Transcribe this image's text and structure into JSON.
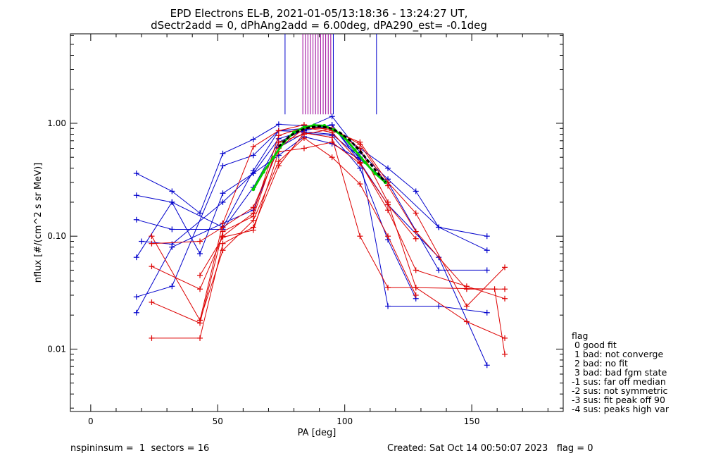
{
  "title": {
    "line1": "EPD Electrons EL-B, 2021-01-05/13:18:36 - 13:24:27 UT,",
    "line2": "dSectr2add = 0, dPhAng2add = 6.00deg, dPA290_est=  -0.1deg"
  },
  "footer": {
    "left": "nspininsum =  1  sectors = 16",
    "right": "Created: Sat Oct 14 00:50:07 2023   flag = 0"
  },
  "legend": {
    "title": "flag",
    "items": [
      " 0 good fit",
      " 1 bad: not converge",
      " 2 bad: no fit",
      " 3 bad: bad fgm state",
      "-1 sus: far off median",
      "-2 sus: not symmetric",
      "-3 sus: fit peak off 90",
      "-4 sus: peaks high var"
    ]
  },
  "colors": {
    "blue": "#0000cc",
    "red": "#dd0000",
    "green": "#00cc00",
    "purple": "#990099",
    "black": "#000000"
  },
  "chart_data": {
    "type": "line",
    "xlabel": "PA [deg]",
    "ylabel": "nflux [#/(cm^2 s sr MeV)]",
    "xlim": [
      -8,
      186
    ],
    "ylim": [
      0.0028,
      6.2
    ],
    "yscale": "log",
    "xticks": [
      "0",
      "50",
      "100",
      "150"
    ],
    "xtick_values": [
      0,
      50,
      100,
      150
    ],
    "yticks": [
      "0.01",
      "0.10",
      "1.00"
    ],
    "ytick_values": [
      0.01,
      0.1,
      1.0
    ],
    "vlines": {
      "blue": [
        76.5,
        95.5,
        112.5
      ],
      "purple": [
        83.5,
        84.5,
        85.5,
        86.5,
        87.5,
        88.5,
        89.5,
        90.5,
        91.5,
        92.5,
        93.5,
        94.5
      ]
    },
    "series": [
      {
        "color": "blue",
        "x": [
          18,
          32,
          43,
          52,
          64,
          74,
          84,
          95,
          106,
          117,
          128,
          137,
          156
        ],
        "y": [
          0.36,
          0.25,
          0.16,
          0.54,
          0.72,
          0.98,
          0.95,
          0.9,
          0.6,
          0.4,
          0.25,
          0.12,
          0.1
        ]
      },
      {
        "color": "blue",
        "x": [
          18,
          32,
          52,
          64,
          74,
          84,
          95,
          106,
          117,
          137,
          156
        ],
        "y": [
          0.23,
          0.2,
          0.12,
          0.38,
          0.86,
          0.9,
          1.15,
          0.55,
          0.32,
          0.12,
          0.075
        ]
      },
      {
        "color": "blue",
        "x": [
          18,
          32,
          52,
          64,
          74,
          84,
          95,
          106,
          117,
          137,
          156
        ],
        "y": [
          0.14,
          0.115,
          0.115,
          0.27,
          0.68,
          0.88,
          0.96,
          0.48,
          0.3,
          0.05,
          0.05
        ]
      },
      {
        "color": "blue",
        "x": [
          18,
          32,
          43,
          52,
          64,
          74,
          84,
          95,
          106,
          117,
          137,
          156
        ],
        "y": [
          0.065,
          0.2,
          0.07,
          0.24,
          0.36,
          0.73,
          0.86,
          0.97,
          0.45,
          0.19,
          0.065,
          0.0072
        ]
      },
      {
        "color": "blue",
        "x": [
          18,
          32,
          52,
          64,
          74,
          84,
          95,
          106,
          117,
          137,
          156
        ],
        "y": [
          0.029,
          0.036,
          0.42,
          0.52,
          0.86,
          0.84,
          0.8,
          0.5,
          0.024,
          0.024,
          0.021
        ]
      },
      {
        "color": "blue",
        "x": [
          18,
          32,
          52,
          64,
          74,
          84,
          95,
          106,
          117,
          128
        ],
        "y": [
          0.021,
          0.08,
          0.13,
          0.17,
          0.61,
          0.82,
          0.78,
          0.4,
          0.093,
          0.028
        ]
      },
      {
        "color": "blue",
        "x": [
          20,
          32,
          52,
          64,
          74,
          84,
          95,
          106
        ],
        "y": [
          0.09,
          0.085,
          0.2,
          0.36,
          0.52,
          0.76,
          0.66,
          0.48
        ]
      },
      {
        "color": "red",
        "x": [
          24,
          43,
          52,
          64,
          74,
          84,
          95,
          106,
          117,
          128,
          148,
          163
        ],
        "y": [
          0.1,
          0.018,
          0.13,
          0.62,
          0.86,
          0.97,
          0.86,
          0.68,
          0.3,
          0.16,
          0.024,
          0.053
        ]
      },
      {
        "color": "red",
        "x": [
          24,
          43,
          52,
          64,
          74,
          84,
          95,
          106,
          117,
          128,
          148,
          163
        ],
        "y": [
          0.086,
          0.09,
          0.12,
          0.18,
          0.6,
          0.9,
          0.9,
          0.65,
          0.28,
          0.11,
          0.034,
          0.034
        ]
      },
      {
        "color": "red",
        "x": [
          24,
          43,
          52,
          64,
          74,
          84,
          95,
          106,
          117,
          128,
          148,
          163
        ],
        "y": [
          0.054,
          0.034,
          0.1,
          0.16,
          0.78,
          0.92,
          0.83,
          0.45,
          0.17,
          0.05,
          0.036,
          0.028
        ]
      },
      {
        "color": "red",
        "x": [
          24,
          43,
          52,
          64,
          74,
          84,
          95,
          106,
          117,
          128,
          148,
          163
        ],
        "y": [
          0.026,
          0.017,
          0.11,
          0.15,
          0.68,
          0.8,
          0.89,
          0.6,
          0.2,
          0.035,
          0.0175,
          0.0125
        ]
      },
      {
        "color": "red",
        "x": [
          24,
          43,
          52,
          64,
          74,
          84,
          95,
          106,
          117,
          128,
          159,
          163
        ],
        "y": [
          0.0125,
          0.0125,
          0.086,
          0.12,
          0.42,
          0.82,
          0.75,
          0.1,
          0.035,
          0.035,
          0.034,
          0.009
        ]
      },
      {
        "color": "red",
        "x": [
          43,
          52,
          64,
          74,
          84,
          95,
          106,
          117,
          128
        ],
        "y": [
          0.045,
          0.098,
          0.113,
          0.56,
          0.6,
          0.68,
          0.44,
          0.19,
          0.095
        ]
      },
      {
        "color": "red",
        "x": [
          43,
          52,
          64,
          74,
          84,
          95,
          106,
          117,
          128
        ],
        "y": [
          0.018,
          0.075,
          0.138,
          0.46,
          0.74,
          0.5,
          0.29,
          0.1,
          0.03
        ]
      }
    ],
    "fit_curves": [
      {
        "color": "green",
        "x": [
          64,
          68,
          72,
          76,
          80,
          84,
          88,
          92,
          96,
          100,
          104,
          108,
          112,
          116
        ],
        "y": [
          0.26,
          0.37,
          0.5,
          0.68,
          0.83,
          0.92,
          0.96,
          0.95,
          0.87,
          0.74,
          0.58,
          0.45,
          0.36,
          0.3
        ]
      },
      {
        "color": "black",
        "x": [
          74,
          78,
          82,
          86,
          90,
          94,
          98,
          102,
          106,
          110,
          114,
          116
        ],
        "y": [
          0.62,
          0.76,
          0.86,
          0.92,
          0.94,
          0.91,
          0.83,
          0.71,
          0.57,
          0.44,
          0.34,
          0.3
        ]
      }
    ]
  }
}
